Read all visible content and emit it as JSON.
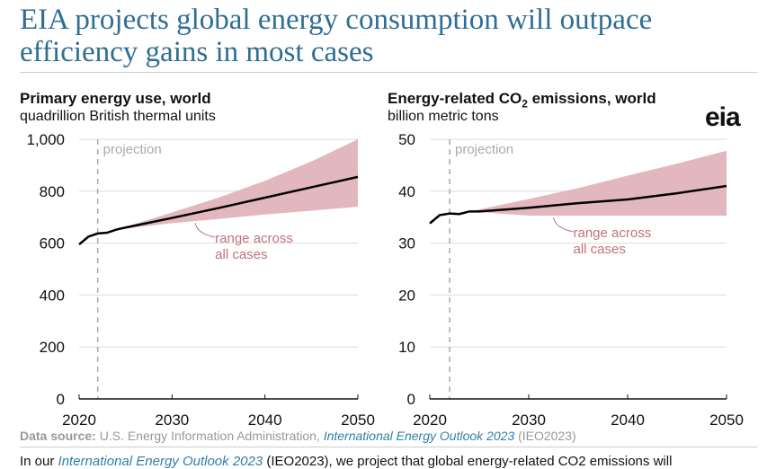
{
  "title": "EIA projects global energy consumption will outpace efficiency gains in most cases",
  "logo": "eia",
  "source": {
    "label": "Data source:",
    "text": " U.S. Energy Information Administration, ",
    "link": "International Energy Outlook 2023",
    "suffix": " (IEO2023)"
  },
  "body_text": {
    "pre": "In our ",
    "link": "International Energy Outlook 2023",
    "post": " (IEO2023), we project that global energy-related CO2 emissions will"
  },
  "colors": {
    "range": "#e2b8be",
    "line": "#000000",
    "annotation": "#c0727e",
    "projection": "#aaaaaa"
  },
  "chart_data": [
    {
      "type": "area",
      "title": "Primary energy use, world",
      "subtitle": "quadrillion British thermal units",
      "ylim": [
        0,
        1000
      ],
      "yticks": [
        "0",
        "200",
        "400",
        "600",
        "800",
        "1,000"
      ],
      "xlim": [
        2020,
        2050
      ],
      "xticks": [
        "2020",
        "2030",
        "2040",
        "2050"
      ],
      "grid": true,
      "projection_label": "projection",
      "projection_start": 2022,
      "annotation": [
        "range across",
        "all cases"
      ],
      "series": {
        "x": [
          2020,
          2021,
          2022,
          2023,
          2024,
          2025,
          2030,
          2035,
          2040,
          2045,
          2050
        ],
        "y": [
          595,
          625,
          637,
          640,
          652,
          660,
          697,
          735,
          775,
          815,
          855
        ]
      },
      "range": {
        "x": [
          2024,
          2030,
          2035,
          2040,
          2045,
          2050
        ],
        "upper": [
          652,
          718,
          775,
          840,
          915,
          1000
        ],
        "lower": [
          652,
          677,
          693,
          710,
          725,
          740
        ]
      }
    },
    {
      "type": "area",
      "title": "Energy-related CO",
      "title_sub": "2",
      "title_end": " emissions, world",
      "subtitle": "billion metric tons",
      "ylim": [
        0,
        50
      ],
      "yticks": [
        "0",
        "10",
        "20",
        "30",
        "40",
        "50"
      ],
      "xlim": [
        2020,
        2050
      ],
      "xticks": [
        "2020",
        "2030",
        "2040",
        "2050"
      ],
      "grid": true,
      "projection_label": "projection",
      "projection_start": 2022,
      "annotation": [
        "range across",
        "all cases"
      ],
      "series": {
        "x": [
          2020,
          2021,
          2022,
          2023,
          2024,
          2025,
          2030,
          2035,
          2040,
          2045,
          2050
        ],
        "y": [
          33.8,
          35.4,
          35.7,
          35.6,
          36.1,
          36.1,
          36.8,
          37.7,
          38.4,
          39.6,
          41.0
        ]
      },
      "range": {
        "x": [
          2024,
          2030,
          2035,
          2040,
          2045,
          2050
        ],
        "upper": [
          36.1,
          38.5,
          40.6,
          43.0,
          45.3,
          47.8
        ],
        "lower": [
          36.1,
          35.3,
          35.3,
          35.3,
          35.3,
          35.3
        ]
      }
    }
  ]
}
